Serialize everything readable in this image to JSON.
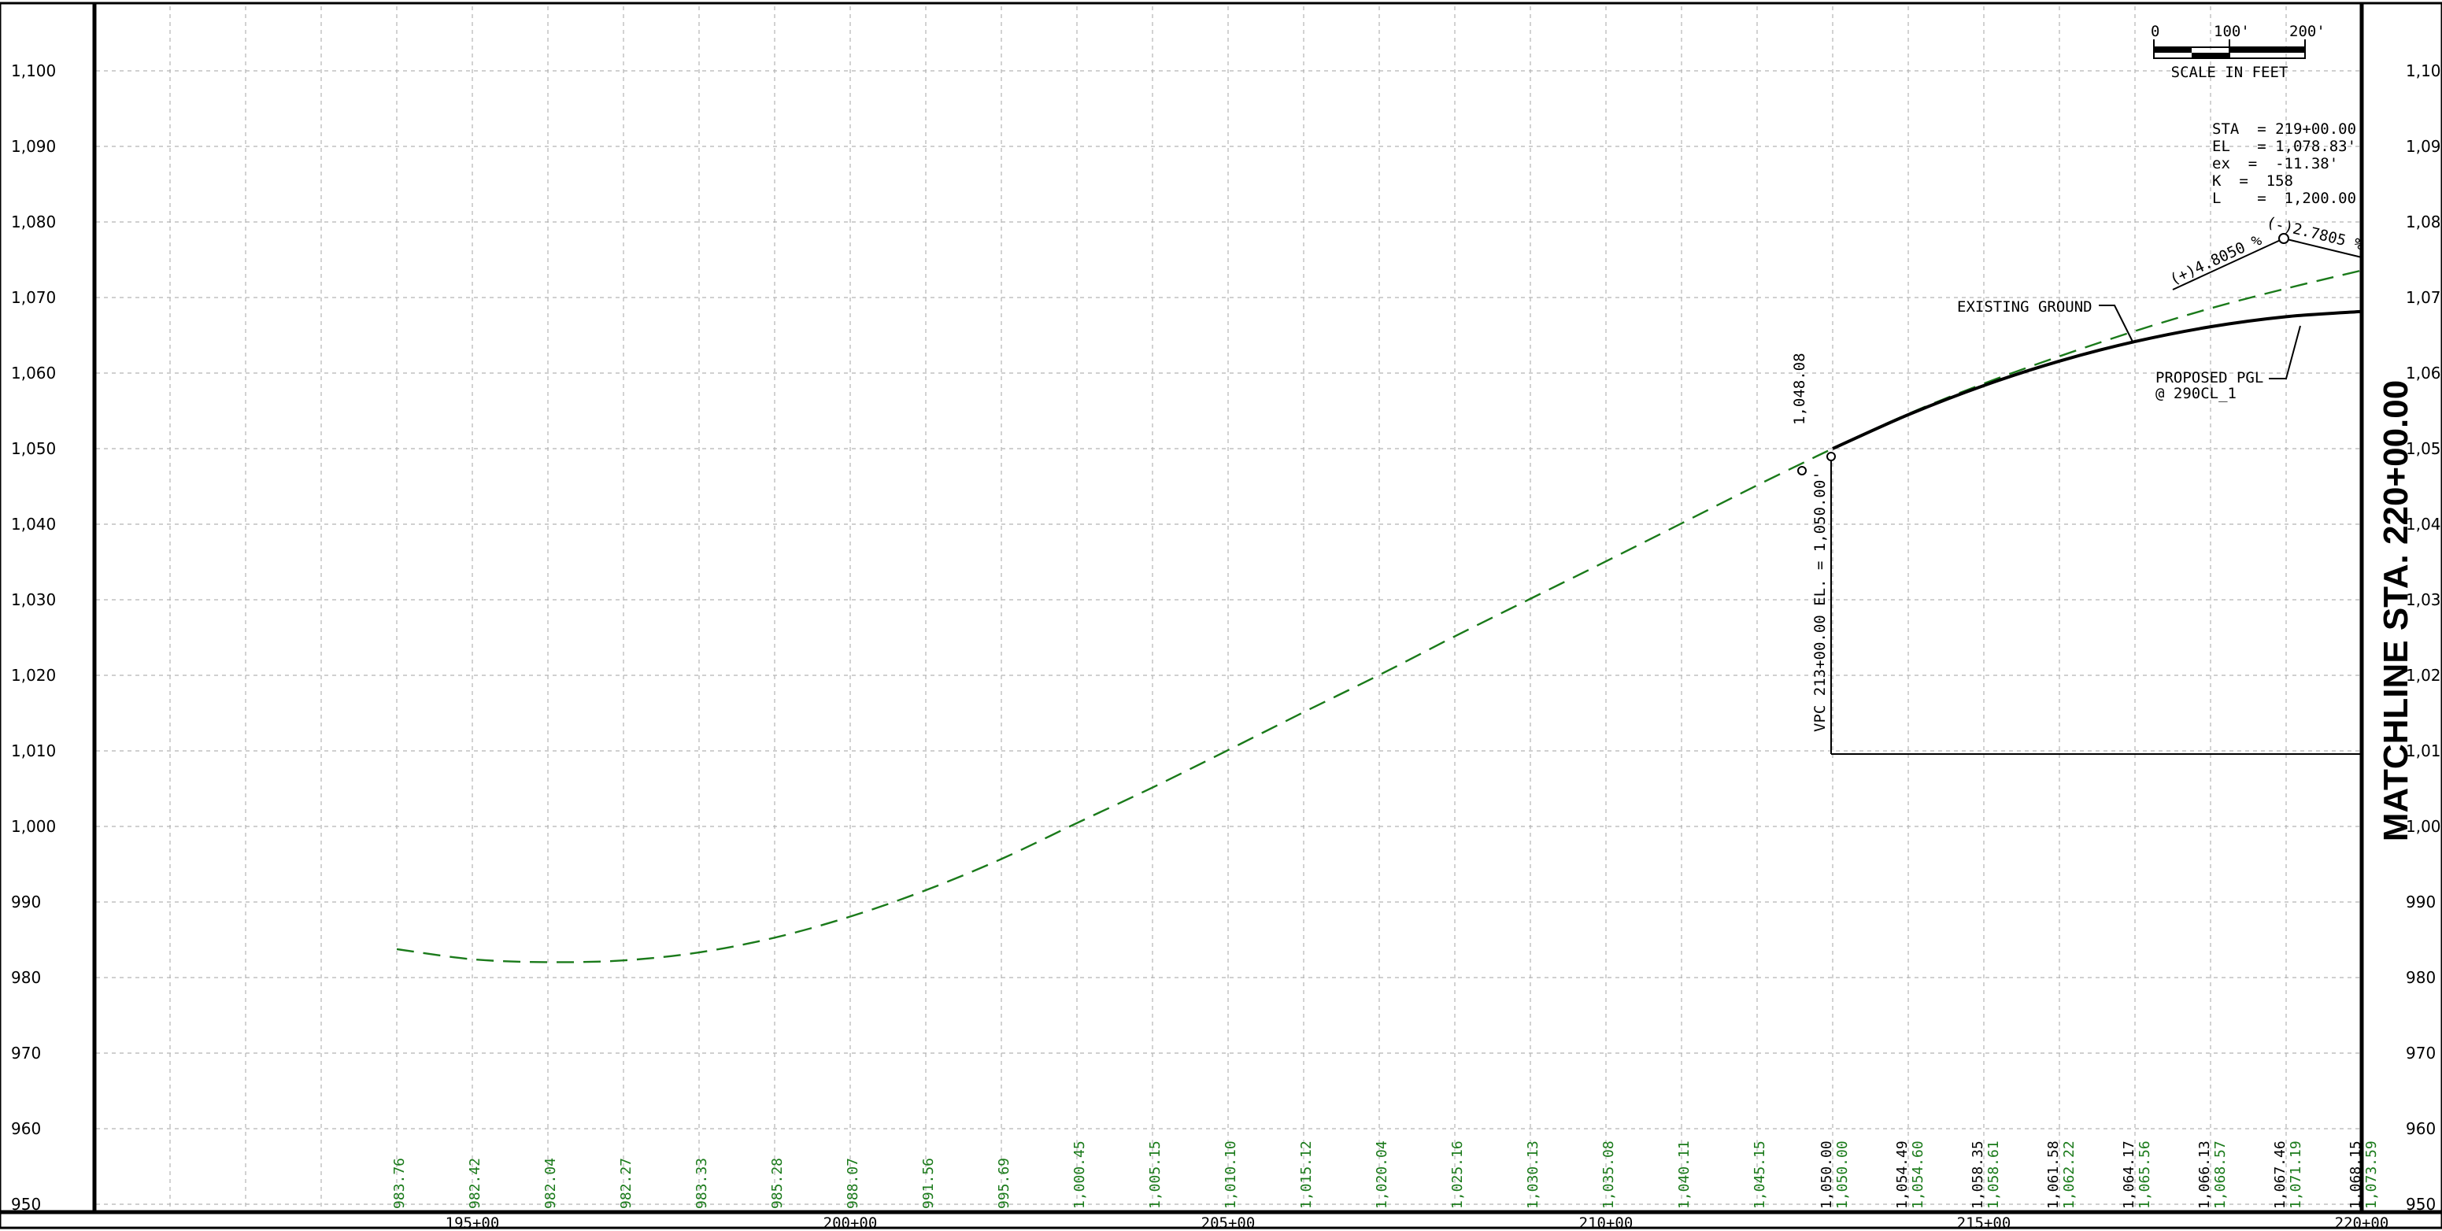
{
  "drawing": {
    "matchline": "MATCHLINE STA. 220+00.00",
    "scale": {
      "ticks": [
        "0",
        "100'",
        "200'"
      ],
      "caption": "SCALE IN FEET"
    },
    "curve_info": [
      "STA  = 219+00.00",
      "EL   = 1,078.83'",
      "ex  =  -11.38'",
      "K  =  158",
      "L    =  1,200.00'"
    ],
    "grade_in": "(+)4.8050 %",
    "grade_out": "(-)2.7805 %",
    "existing_label": "EXISTING GROUND",
    "pgl_label": [
      "PROPOSED PGL",
      "@ 290CL_1"
    ],
    "vpc_label": "VPC 213+00.00 EL. = 1,050.00'",
    "vpc_elev_label": "1,048.08",
    "colors": {
      "existing": "#1a7a1a",
      "proposed": "#000000",
      "grid": "#b4b4b4",
      "frame": "#000000"
    }
  },
  "chart_data": {
    "type": "line",
    "x_axis": {
      "ticks": [
        "195+00",
        "200+00",
        "205+00",
        "210+00",
        "215+00",
        "220+00"
      ],
      "range_stations": [
        190.5,
        220
      ]
    },
    "y_axis": {
      "range": [
        950,
        1100
      ],
      "ticks": [
        950,
        960,
        970,
        980,
        990,
        1000,
        1010,
        1020,
        1030,
        1040,
        1050,
        1060,
        1070,
        1080,
        1090,
        1100
      ],
      "labels": [
        "950",
        "960",
        "970",
        "980",
        "990",
        "1,000",
        "1,010",
        "1,020",
        "1,030",
        "1,040",
        "1,050",
        "1,060",
        "1,070",
        "1,080",
        "1,090",
        "1,100"
      ]
    },
    "grid": true,
    "series": [
      {
        "name": "EXISTING GROUND",
        "style": "dashed",
        "points": [
          [
            194,
            983.76
          ],
          [
            195,
            982.42
          ],
          [
            196,
            982.04
          ],
          [
            197,
            982.27
          ],
          [
            198,
            983.33
          ],
          [
            199,
            985.28
          ],
          [
            200,
            988.07
          ],
          [
            201,
            991.56
          ],
          [
            202,
            995.69
          ],
          [
            203,
            1000.45
          ],
          [
            204,
            1005.15
          ],
          [
            205,
            1010.1
          ],
          [
            206,
            1015.12
          ],
          [
            207,
            1020.04
          ],
          [
            208,
            1025.16
          ],
          [
            209,
            1030.13
          ],
          [
            210,
            1035.08
          ],
          [
            211,
            1040.11
          ],
          [
            212,
            1045.15
          ],
          [
            212.6,
            1048.08
          ],
          [
            213,
            1050.0
          ],
          [
            214,
            1054.6
          ],
          [
            215,
            1058.61
          ],
          [
            216,
            1062.22
          ],
          [
            217,
            1065.56
          ],
          [
            218,
            1068.57
          ],
          [
            219,
            1071.19
          ],
          [
            220,
            1073.59
          ]
        ]
      },
      {
        "name": "PROPOSED PGL",
        "style": "solid",
        "points": [
          [
            213,
            1050.0
          ],
          [
            214,
            1054.49
          ],
          [
            215,
            1058.35
          ],
          [
            216,
            1061.58
          ],
          [
            217,
            1064.17
          ],
          [
            218,
            1066.13
          ],
          [
            219,
            1067.46
          ],
          [
            220,
            1068.15
          ]
        ]
      }
    ],
    "bottom_labels": [
      {
        "station": 194,
        "values": [
          "983.76"
        ]
      },
      {
        "station": 195,
        "values": [
          "982.42"
        ]
      },
      {
        "station": 196,
        "values": [
          "982.04"
        ]
      },
      {
        "station": 197,
        "values": [
          "982.27"
        ]
      },
      {
        "station": 198,
        "values": [
          "983.33"
        ]
      },
      {
        "station": 199,
        "values": [
          "985.28"
        ]
      },
      {
        "station": 200,
        "values": [
          "988.07"
        ]
      },
      {
        "station": 201,
        "values": [
          "991.56"
        ]
      },
      {
        "station": 202,
        "values": [
          "995.69"
        ]
      },
      {
        "station": 203,
        "values": [
          "1,000.45"
        ]
      },
      {
        "station": 204,
        "values": [
          "1,005.15"
        ]
      },
      {
        "station": 205,
        "values": [
          "1,010.10"
        ]
      },
      {
        "station": 206,
        "values": [
          "1,015.12"
        ]
      },
      {
        "station": 207,
        "values": [
          "1,020.04"
        ]
      },
      {
        "station": 208,
        "values": [
          "1,025.16"
        ]
      },
      {
        "station": 209,
        "values": [
          "1,030.13"
        ]
      },
      {
        "station": 210,
        "values": [
          "1,035.08"
        ]
      },
      {
        "station": 211,
        "values": [
          "1,040.11"
        ]
      },
      {
        "station": 212,
        "values": [
          "1,045.15"
        ]
      },
      {
        "station": 213,
        "values": [
          "1,050.00",
          "1,050.00"
        ]
      },
      {
        "station": 214,
        "values": [
          "1,054.49",
          "1,054.60"
        ]
      },
      {
        "station": 215,
        "values": [
          "1,058.35",
          "1,058.61"
        ]
      },
      {
        "station": 216,
        "values": [
          "1,061.58",
          "1,062.22"
        ]
      },
      {
        "station": 217,
        "values": [
          "1,064.17",
          "1,065.56"
        ]
      },
      {
        "station": 218,
        "values": [
          "1,066.13",
          "1,068.57"
        ]
      },
      {
        "station": 219,
        "values": [
          "1,067.46",
          "1,071.19"
        ]
      },
      {
        "station": 220,
        "values": [
          "1,068.15",
          "1,073.59"
        ]
      }
    ]
  }
}
